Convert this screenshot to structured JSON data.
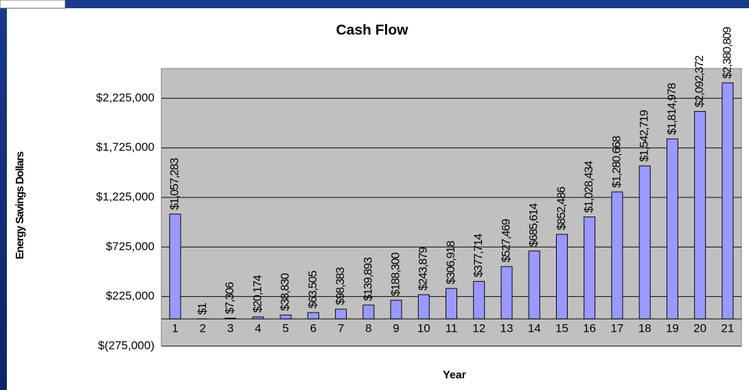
{
  "chart_data": {
    "type": "bar",
    "title": "Cash Flow",
    "x_label": "Year",
    "y_label": "Energy Savings Dollars",
    "categories": [
      "1",
      "2",
      "3",
      "4",
      "5",
      "6",
      "7",
      "8",
      "9",
      "10",
      "11",
      "12",
      "13",
      "14",
      "15",
      "16",
      "17",
      "18",
      "19",
      "20",
      "21"
    ],
    "values": [
      1057283,
      1,
      7306,
      20174,
      38830,
      63505,
      98383,
      139893,
      188300,
      243879,
      306918,
      377714,
      527469,
      685614,
      852486,
      1028434,
      1280668,
      1542719,
      1814978,
      2092372,
      2380809
    ],
    "value_labels": [
      "$1,057,283",
      "$1",
      "$7,306",
      "$20,174",
      "$38,830",
      "$63,505",
      "$98,383",
      "$139,893",
      "$188,300",
      "$243,879",
      "$306,918",
      "$377,714",
      "$527,469",
      "$685,614",
      "$852,486",
      "$1,028,434",
      "$1,280,668",
      "$1,542,719",
      "$1,814,978",
      "$2,092,372",
      "$2,380,809"
    ],
    "color": "#9999ff",
    "ylim": [
      -275000,
      2525000
    ],
    "yticks": [
      {
        "value": -275000,
        "label": "$(275,000)"
      },
      {
        "value": 225000,
        "label": "$225,000"
      },
      {
        "value": 725000,
        "label": "$725,000"
      },
      {
        "value": 1225000,
        "label": "$1,225,000"
      },
      {
        "value": 1725000,
        "label": "$1,725,000"
      },
      {
        "value": 2225000,
        "label": "$2,225,000"
      }
    ],
    "grid": true
  }
}
